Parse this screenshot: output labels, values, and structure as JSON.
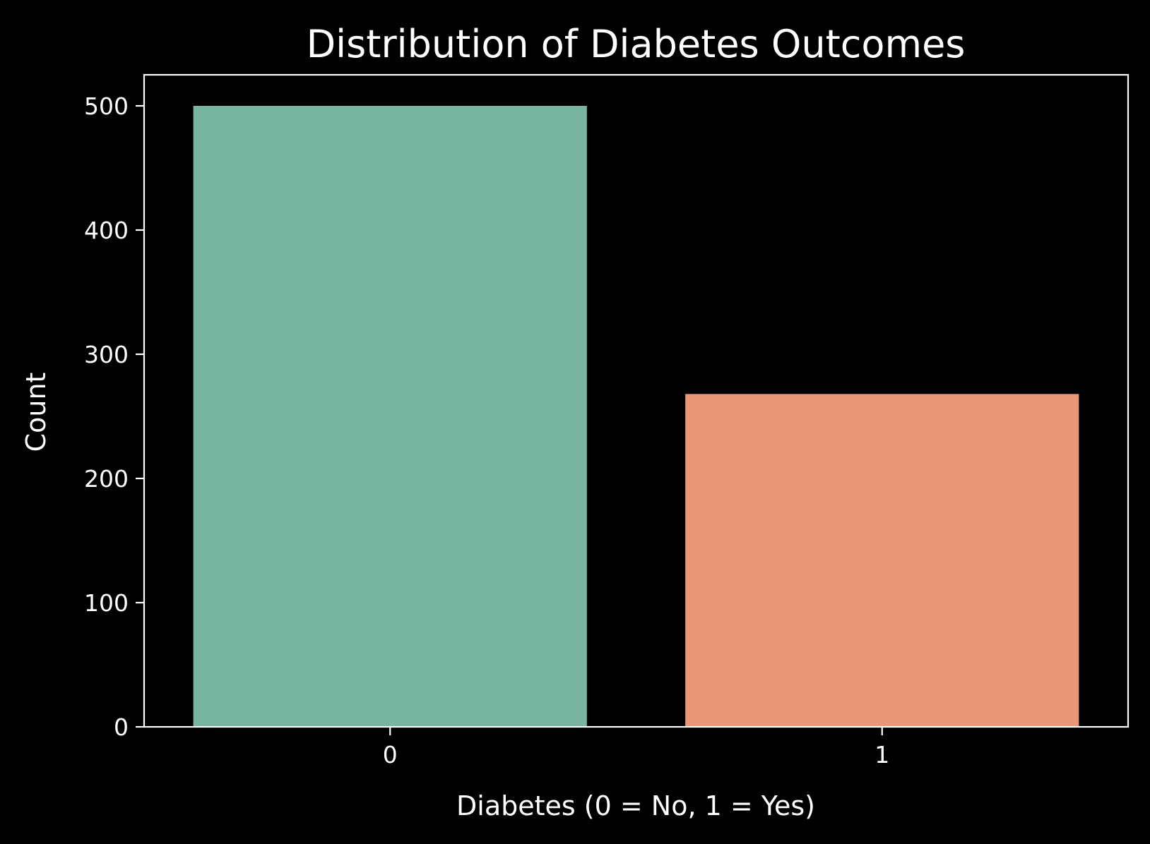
{
  "chart_data": {
    "type": "bar",
    "title": "Distribution of Diabetes Outcomes",
    "xlabel": "Diabetes (0 = No, 1 = Yes)",
    "ylabel": "Count",
    "categories": [
      "0",
      "1"
    ],
    "values": [
      500,
      268
    ],
    "ylim": [
      0,
      525
    ],
    "yticks": [
      0,
      100,
      200,
      300,
      400,
      500
    ],
    "grid": false,
    "bar_colors": [
      "#77b5a1",
      "#e99776"
    ],
    "background": "#000000",
    "foreground": "#ffffff"
  }
}
